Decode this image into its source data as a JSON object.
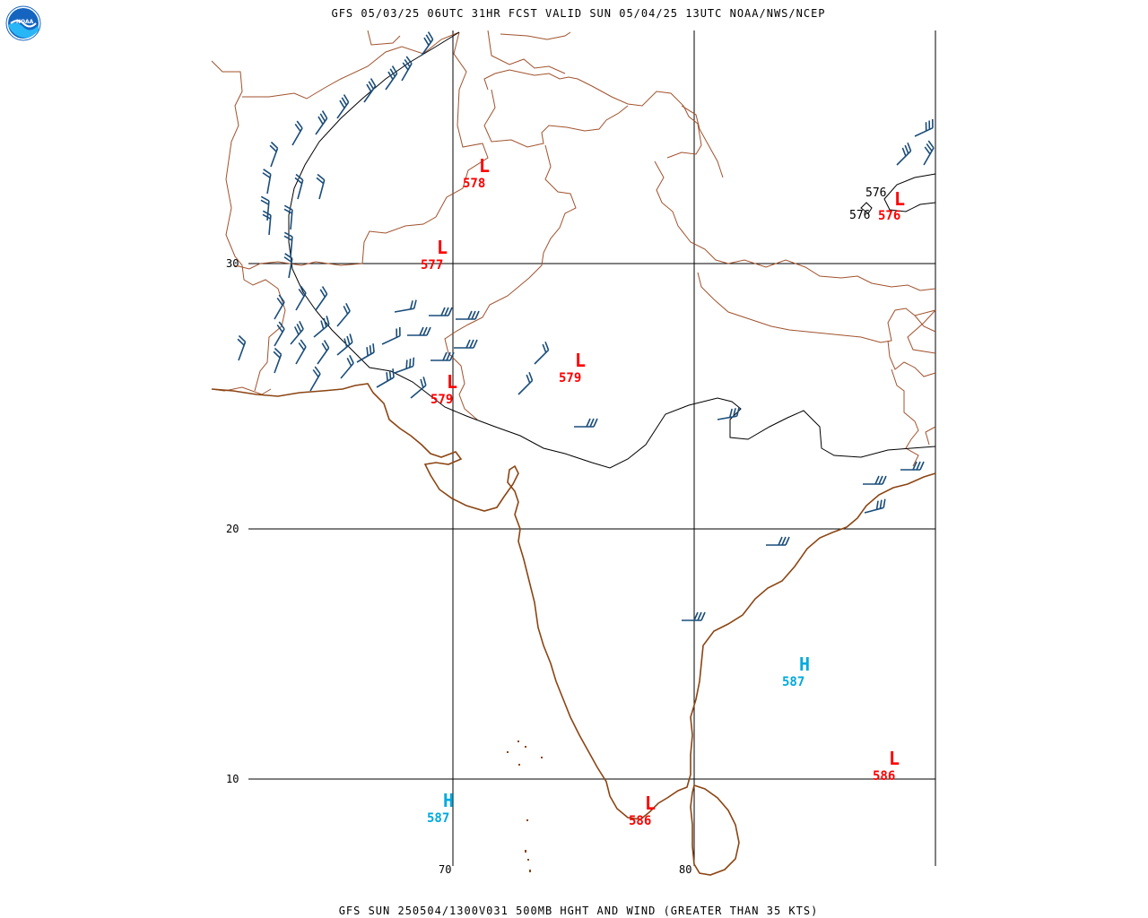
{
  "header": {
    "title": "GFS 05/03/25 06UTC 31HR FCST VALID SUN 05/04/25 13UTC NOAA/NWS/NCEP"
  },
  "footer": {
    "caption": "GFS SUN 250504/1300V031 500MB HGHT AND WIND (GREATER THAN 35 KTS)"
  },
  "logo": {
    "text": "NOAA",
    "icon": "noaa-logo-icon"
  },
  "grid": {
    "lat_labels": [
      "30",
      "20",
      "10"
    ],
    "lon_labels": [
      "70",
      "80"
    ]
  },
  "colors": {
    "low": "#ff0000",
    "high": "#00aadd",
    "contour": "#000000",
    "wind": "#1a4d7a",
    "border": "#a0522d",
    "coast": "#8b4513"
  },
  "pressure_centers": [
    {
      "type": "L",
      "value": "578"
    },
    {
      "type": "L",
      "value": "577"
    },
    {
      "type": "L",
      "value": "579"
    },
    {
      "type": "L",
      "value": "579"
    },
    {
      "type": "L",
      "value": "576"
    },
    {
      "type": "H",
      "value": "587"
    },
    {
      "type": "L",
      "value": "586"
    },
    {
      "type": "H",
      "value": "587"
    },
    {
      "type": "L",
      "value": "586"
    }
  ],
  "contour_labels": [
    "576",
    "576"
  ]
}
